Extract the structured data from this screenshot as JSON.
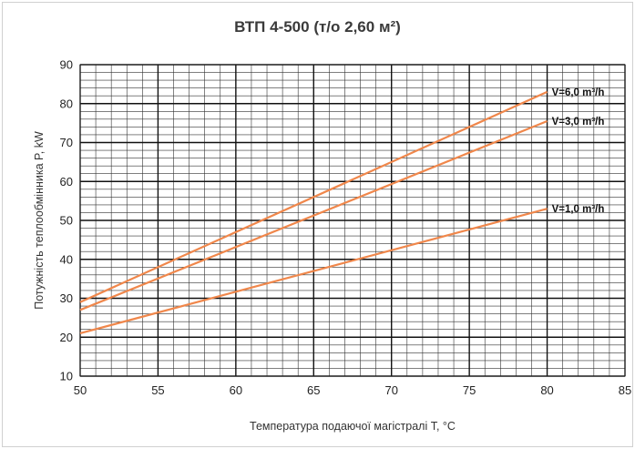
{
  "chart_data": {
    "type": "line",
    "title": "ВТП 4-500 (т/о 2,60 м²)",
    "xlabel": "Температура подаючої магістралі Т, °C",
    "ylabel": "Потужність теплообмінника P, kW",
    "xlim": [
      50,
      85
    ],
    "ylim": [
      10,
      90
    ],
    "x_ticks": [
      50,
      55,
      60,
      65,
      70,
      75,
      80,
      85
    ],
    "y_ticks": [
      10,
      20,
      30,
      40,
      50,
      60,
      70,
      80,
      90
    ],
    "grid": true,
    "line_color": "#f0874b",
    "series": [
      {
        "name": "V=6,0 m³/h",
        "x": [
          50,
          80
        ],
        "y": [
          29,
          83
        ]
      },
      {
        "name": "V=3,0 m³/h",
        "x": [
          50,
          80
        ],
        "y": [
          27,
          75.5
        ]
      },
      {
        "name": "V=1,0 m³/h",
        "x": [
          50,
          80
        ],
        "y": [
          21,
          53
        ]
      }
    ]
  }
}
